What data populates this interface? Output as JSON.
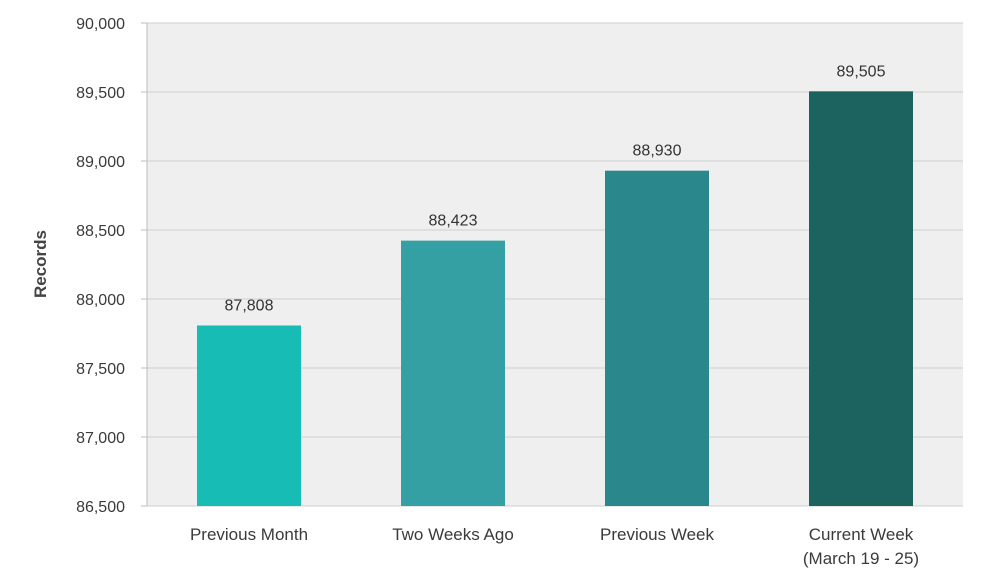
{
  "chart_data": {
    "type": "bar",
    "title": "",
    "xlabel": "",
    "ylabel": "Records",
    "ylim": [
      86500,
      90000
    ],
    "yticks": [
      86500,
      87000,
      87500,
      88000,
      88500,
      89000,
      89500,
      90000
    ],
    "ytick_labels": [
      "86,500",
      "87,000",
      "87,500",
      "88,000",
      "88,500",
      "89,000",
      "89,500",
      "90,000"
    ],
    "categories": [
      [
        "Previous Month"
      ],
      [
        "Two Weeks Ago"
      ],
      [
        "Previous Week"
      ],
      [
        "Current Week",
        "(March 19 - 25)"
      ]
    ],
    "values": [
      87808,
      88423,
      88930,
      89505
    ],
    "value_labels": [
      "87,808",
      "88,423",
      "88,930",
      "89,505"
    ],
    "colors": [
      "#17bcb4",
      "#34a0a4",
      "#2a878b",
      "#1c625e"
    ],
    "grid": true,
    "legend": "none"
  }
}
